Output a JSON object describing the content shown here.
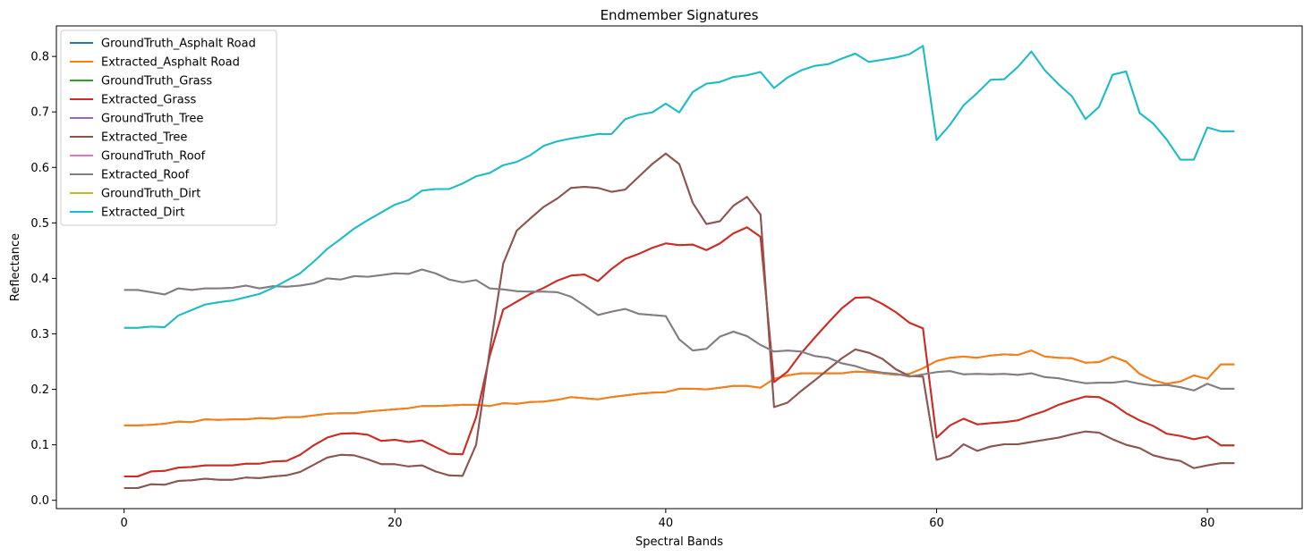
{
  "chart_data": {
    "type": "line",
    "title": "Endmember Signatures",
    "xlabel": "Spectral Bands",
    "ylabel": "Reflectance",
    "xlim": [
      -5,
      87
    ],
    "ylim": [
      -0.015,
      0.855
    ],
    "xticks": [
      0,
      20,
      40,
      60,
      80
    ],
    "yticks": [
      0.0,
      0.1,
      0.2,
      0.3,
      0.4,
      0.5,
      0.6,
      0.7,
      0.8
    ],
    "grid": false,
    "legend_position": "top-left",
    "series": [
      {
        "name": "GroundTruth_Asphalt Road",
        "color": "#1f77b4",
        "values": [
          0.135,
          0.135,
          0.136,
          0.138,
          0.142,
          0.141,
          0.146,
          0.145,
          0.146,
          0.146,
          0.148,
          0.147,
          0.15,
          0.15,
          0.153,
          0.156,
          0.157,
          0.157,
          0.16,
          0.162,
          0.164,
          0.166,
          0.17,
          0.17,
          0.171,
          0.172,
          0.172,
          0.17,
          0.175,
          0.174,
          0.177,
          0.178,
          0.181,
          0.186,
          0.184,
          0.182,
          0.186,
          0.189,
          0.192,
          0.194,
          0.195,
          0.201,
          0.201,
          0.2,
          0.203,
          0.206,
          0.206,
          0.203,
          0.219,
          0.225,
          0.229,
          0.229,
          0.229,
          0.229,
          0.232,
          0.231,
          0.229,
          0.226,
          0.228,
          0.238,
          0.251,
          0.257,
          0.259,
          0.257,
          0.261,
          0.263,
          0.262,
          0.27,
          0.259,
          0.257,
          0.256,
          0.248,
          0.249,
          0.259,
          0.25,
          0.228,
          0.216,
          0.21,
          0.214,
          0.225,
          0.219,
          0.245,
          0.245
        ]
      },
      {
        "name": "Extracted_Asphalt Road",
        "color": "#ff7f0e",
        "values": [
          0.135,
          0.135,
          0.136,
          0.138,
          0.142,
          0.141,
          0.146,
          0.145,
          0.146,
          0.146,
          0.148,
          0.147,
          0.15,
          0.15,
          0.153,
          0.156,
          0.157,
          0.157,
          0.16,
          0.162,
          0.164,
          0.166,
          0.17,
          0.17,
          0.171,
          0.172,
          0.172,
          0.17,
          0.175,
          0.174,
          0.177,
          0.178,
          0.181,
          0.186,
          0.184,
          0.182,
          0.186,
          0.189,
          0.192,
          0.194,
          0.195,
          0.201,
          0.201,
          0.2,
          0.203,
          0.206,
          0.206,
          0.203,
          0.219,
          0.225,
          0.229,
          0.229,
          0.229,
          0.229,
          0.232,
          0.231,
          0.229,
          0.226,
          0.228,
          0.238,
          0.251,
          0.257,
          0.259,
          0.257,
          0.261,
          0.263,
          0.262,
          0.27,
          0.259,
          0.257,
          0.256,
          0.248,
          0.249,
          0.259,
          0.25,
          0.228,
          0.216,
          0.21,
          0.214,
          0.225,
          0.219,
          0.245,
          0.245
        ]
      },
      {
        "name": "GroundTruth_Grass",
        "color": "#2ca02c",
        "values": [
          0.043,
          0.043,
          0.052,
          0.053,
          0.059,
          0.06,
          0.063,
          0.063,
          0.063,
          0.066,
          0.066,
          0.07,
          0.071,
          0.082,
          0.099,
          0.113,
          0.12,
          0.121,
          0.118,
          0.107,
          0.109,
          0.105,
          0.108,
          0.096,
          0.084,
          0.083,
          0.15,
          0.26,
          0.344,
          0.358,
          0.372,
          0.383,
          0.396,
          0.405,
          0.407,
          0.395,
          0.417,
          0.435,
          0.444,
          0.455,
          0.463,
          0.46,
          0.461,
          0.451,
          0.463,
          0.481,
          0.492,
          0.475,
          0.213,
          0.232,
          0.265,
          0.293,
          0.32,
          0.346,
          0.365,
          0.366,
          0.354,
          0.339,
          0.32,
          0.31,
          0.113,
          0.135,
          0.147,
          0.137,
          0.139,
          0.141,
          0.144,
          0.153,
          0.161,
          0.172,
          0.18,
          0.187,
          0.186,
          0.174,
          0.157,
          0.144,
          0.134,
          0.12,
          0.116,
          0.11,
          0.115,
          0.099,
          0.099
        ]
      },
      {
        "name": "Extracted_Grass",
        "color": "#d62728",
        "values": [
          0.043,
          0.043,
          0.052,
          0.053,
          0.059,
          0.06,
          0.063,
          0.063,
          0.063,
          0.066,
          0.066,
          0.07,
          0.071,
          0.082,
          0.099,
          0.113,
          0.12,
          0.121,
          0.118,
          0.107,
          0.109,
          0.105,
          0.108,
          0.096,
          0.084,
          0.083,
          0.15,
          0.26,
          0.344,
          0.358,
          0.372,
          0.383,
          0.396,
          0.405,
          0.407,
          0.395,
          0.417,
          0.435,
          0.444,
          0.455,
          0.463,
          0.46,
          0.461,
          0.451,
          0.463,
          0.481,
          0.492,
          0.475,
          0.213,
          0.232,
          0.265,
          0.293,
          0.32,
          0.346,
          0.365,
          0.366,
          0.354,
          0.339,
          0.32,
          0.31,
          0.113,
          0.135,
          0.147,
          0.137,
          0.139,
          0.141,
          0.144,
          0.153,
          0.161,
          0.172,
          0.18,
          0.187,
          0.186,
          0.174,
          0.157,
          0.144,
          0.134,
          0.12,
          0.116,
          0.11,
          0.115,
          0.099,
          0.099
        ]
      },
      {
        "name": "GroundTruth_Tree",
        "color": "#9467bd",
        "values": [
          0.022,
          0.022,
          0.029,
          0.028,
          0.035,
          0.036,
          0.039,
          0.037,
          0.037,
          0.041,
          0.04,
          0.043,
          0.045,
          0.051,
          0.064,
          0.077,
          0.082,
          0.081,
          0.074,
          0.065,
          0.065,
          0.061,
          0.063,
          0.052,
          0.045,
          0.044,
          0.1,
          0.27,
          0.427,
          0.486,
          0.508,
          0.529,
          0.544,
          0.563,
          0.565,
          0.563,
          0.556,
          0.56,
          0.583,
          0.606,
          0.625,
          0.606,
          0.536,
          0.498,
          0.503,
          0.531,
          0.547,
          0.515,
          0.168,
          0.176,
          0.197,
          0.216,
          0.236,
          0.256,
          0.272,
          0.266,
          0.255,
          0.236,
          0.224,
          0.223,
          0.073,
          0.08,
          0.101,
          0.089,
          0.097,
          0.101,
          0.101,
          0.105,
          0.109,
          0.113,
          0.119,
          0.124,
          0.122,
          0.11,
          0.1,
          0.094,
          0.081,
          0.075,
          0.071,
          0.058,
          0.063,
          0.067,
          0.067
        ]
      },
      {
        "name": "Extracted_Tree",
        "color": "#8c564b",
        "values": [
          0.022,
          0.022,
          0.029,
          0.028,
          0.035,
          0.036,
          0.039,
          0.037,
          0.037,
          0.041,
          0.04,
          0.043,
          0.045,
          0.051,
          0.064,
          0.077,
          0.082,
          0.081,
          0.074,
          0.065,
          0.065,
          0.061,
          0.063,
          0.052,
          0.045,
          0.044,
          0.1,
          0.27,
          0.427,
          0.486,
          0.508,
          0.529,
          0.544,
          0.563,
          0.565,
          0.563,
          0.556,
          0.56,
          0.583,
          0.606,
          0.625,
          0.606,
          0.536,
          0.498,
          0.503,
          0.531,
          0.547,
          0.515,
          0.168,
          0.176,
          0.197,
          0.216,
          0.236,
          0.256,
          0.272,
          0.266,
          0.255,
          0.236,
          0.224,
          0.223,
          0.073,
          0.08,
          0.101,
          0.089,
          0.097,
          0.101,
          0.101,
          0.105,
          0.109,
          0.113,
          0.119,
          0.124,
          0.122,
          0.11,
          0.1,
          0.094,
          0.081,
          0.075,
          0.071,
          0.058,
          0.063,
          0.067,
          0.067
        ]
      },
      {
        "name": "GroundTruth_Roof",
        "color": "#e377c2",
        "values": [
          0.379,
          0.379,
          0.375,
          0.371,
          0.382,
          0.379,
          0.382,
          0.382,
          0.383,
          0.387,
          0.382,
          0.386,
          0.385,
          0.387,
          0.391,
          0.4,
          0.398,
          0.404,
          0.403,
          0.406,
          0.409,
          0.408,
          0.416,
          0.409,
          0.398,
          0.393,
          0.397,
          0.382,
          0.38,
          0.377,
          0.376,
          0.376,
          0.375,
          0.367,
          0.351,
          0.334,
          0.34,
          0.345,
          0.336,
          0.334,
          0.332,
          0.29,
          0.27,
          0.273,
          0.295,
          0.304,
          0.296,
          0.28,
          0.268,
          0.27,
          0.268,
          0.26,
          0.257,
          0.247,
          0.242,
          0.234,
          0.23,
          0.228,
          0.223,
          0.227,
          0.231,
          0.233,
          0.227,
          0.228,
          0.227,
          0.228,
          0.226,
          0.229,
          0.222,
          0.22,
          0.215,
          0.211,
          0.212,
          0.212,
          0.215,
          0.21,
          0.207,
          0.208,
          0.204,
          0.198,
          0.21,
          0.201,
          0.201
        ]
      },
      {
        "name": "Extracted_Roof",
        "color": "#7f7f7f",
        "values": [
          0.379,
          0.379,
          0.375,
          0.371,
          0.382,
          0.379,
          0.382,
          0.382,
          0.383,
          0.387,
          0.382,
          0.386,
          0.385,
          0.387,
          0.391,
          0.4,
          0.398,
          0.404,
          0.403,
          0.406,
          0.409,
          0.408,
          0.416,
          0.409,
          0.398,
          0.393,
          0.397,
          0.382,
          0.38,
          0.377,
          0.376,
          0.376,
          0.375,
          0.367,
          0.351,
          0.334,
          0.34,
          0.345,
          0.336,
          0.334,
          0.332,
          0.29,
          0.27,
          0.273,
          0.295,
          0.304,
          0.296,
          0.28,
          0.268,
          0.27,
          0.268,
          0.26,
          0.257,
          0.247,
          0.242,
          0.234,
          0.23,
          0.228,
          0.223,
          0.227,
          0.231,
          0.233,
          0.227,
          0.228,
          0.227,
          0.228,
          0.226,
          0.229,
          0.222,
          0.22,
          0.215,
          0.211,
          0.212,
          0.212,
          0.215,
          0.21,
          0.207,
          0.208,
          0.204,
          0.198,
          0.21,
          0.201,
          0.201
        ]
      },
      {
        "name": "GroundTruth_Dirt",
        "color": "#bcbd22",
        "values": [
          0.311,
          0.311,
          0.313,
          0.312,
          0.333,
          0.343,
          0.353,
          0.357,
          0.36,
          0.366,
          0.372,
          0.383,
          0.396,
          0.409,
          0.43,
          0.453,
          0.471,
          0.49,
          0.505,
          0.519,
          0.533,
          0.541,
          0.558,
          0.561,
          0.561,
          0.571,
          0.584,
          0.59,
          0.604,
          0.61,
          0.622,
          0.639,
          0.647,
          0.652,
          0.656,
          0.66,
          0.66,
          0.687,
          0.695,
          0.699,
          0.715,
          0.699,
          0.736,
          0.751,
          0.754,
          0.763,
          0.766,
          0.772,
          0.743,
          0.762,
          0.775,
          0.783,
          0.786,
          0.796,
          0.805,
          0.79,
          0.794,
          0.798,
          0.804,
          0.819,
          0.649,
          0.677,
          0.712,
          0.734,
          0.758,
          0.759,
          0.781,
          0.809,
          0.775,
          0.75,
          0.728,
          0.687,
          0.709,
          0.767,
          0.773,
          0.698,
          0.679,
          0.65,
          0.614,
          0.614,
          0.672,
          0.665,
          0.665
        ]
      },
      {
        "name": "Extracted_Dirt",
        "color": "#17becf",
        "values": [
          0.311,
          0.311,
          0.313,
          0.312,
          0.333,
          0.343,
          0.353,
          0.357,
          0.36,
          0.366,
          0.372,
          0.383,
          0.396,
          0.409,
          0.43,
          0.453,
          0.471,
          0.49,
          0.505,
          0.519,
          0.533,
          0.541,
          0.558,
          0.561,
          0.561,
          0.571,
          0.584,
          0.59,
          0.604,
          0.61,
          0.622,
          0.639,
          0.647,
          0.652,
          0.656,
          0.66,
          0.66,
          0.687,
          0.695,
          0.699,
          0.715,
          0.699,
          0.736,
          0.751,
          0.754,
          0.763,
          0.766,
          0.772,
          0.743,
          0.762,
          0.775,
          0.783,
          0.786,
          0.796,
          0.805,
          0.79,
          0.794,
          0.798,
          0.804,
          0.819,
          0.649,
          0.677,
          0.712,
          0.734,
          0.758,
          0.759,
          0.781,
          0.809,
          0.775,
          0.75,
          0.728,
          0.687,
          0.709,
          0.767,
          0.773,
          0.698,
          0.679,
          0.65,
          0.614,
          0.614,
          0.672,
          0.665,
          0.665
        ]
      }
    ]
  }
}
